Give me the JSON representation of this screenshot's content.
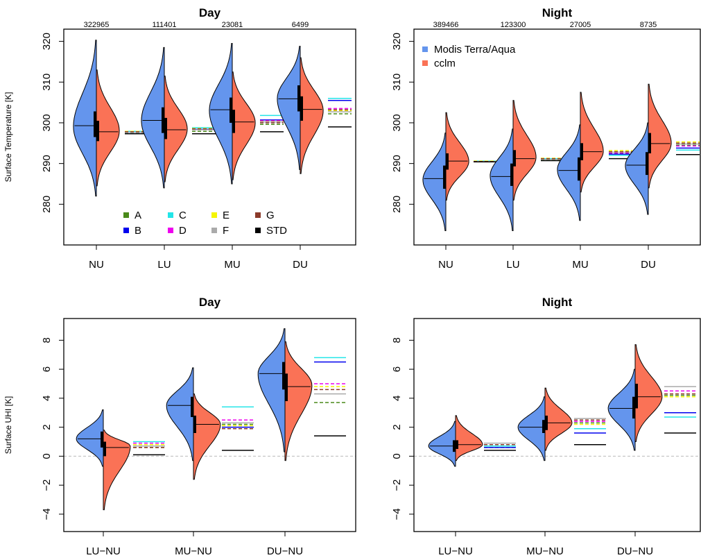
{
  "colors": {
    "modis": "#6495ed",
    "cclm": "#fa7256",
    "zero_line": "#bbbbbb"
  },
  "legend_series": [
    {
      "name": "Modis Terra/Aqua",
      "color": "#6495ed"
    },
    {
      "name": "cclm",
      "color": "#fa7256"
    }
  ],
  "legend_experiments": [
    {
      "name": "A",
      "color": "#4a8a1a"
    },
    {
      "name": "B",
      "color": "#0000ee"
    },
    {
      "name": "C",
      "color": "#22e5e8"
    },
    {
      "name": "D",
      "color": "#ee00ee"
    },
    {
      "name": "E",
      "color": "#f5f500"
    },
    {
      "name": "F",
      "color": "#aaaaaa"
    },
    {
      "name": "G",
      "color": "#8b3a2a"
    },
    {
      "name": "STD",
      "color": "#000000"
    }
  ],
  "chart_data": [
    {
      "type": "violin",
      "title": "Day",
      "ylabel": "Surface Temperature [K]",
      "ylim": [
        270,
        323
      ],
      "yticks": [
        280,
        290,
        300,
        310,
        320
      ],
      "categories": [
        "NU",
        "LU",
        "MU",
        "DU"
      ],
      "counts": [
        "322965",
        "111401",
        "23081",
        "6499"
      ],
      "modis": [
        {
          "min": 282.0,
          "max": 320.3,
          "mode": 299.0,
          "median": 299.3,
          "q1": 296.5,
          "q3": 302.8
        },
        {
          "min": 284.0,
          "max": 318.5,
          "mode": 300.5,
          "median": 300.6,
          "q1": 297.5,
          "q3": 303.8
        },
        {
          "min": 285.0,
          "max": 319.5,
          "mode": 303.0,
          "median": 303.2,
          "q1": 300.0,
          "q3": 306.2
        },
        {
          "min": 288.5,
          "max": 318.8,
          "mode": 306.0,
          "median": 305.9,
          "q1": 302.8,
          "q3": 309.2
        }
      ],
      "cclm": [
        {
          "min": 284.5,
          "max": 313.0,
          "mode": 298.0,
          "median": 297.8,
          "q1": 295.5,
          "q3": 300.5
        },
        {
          "min": 285.5,
          "max": 311.5,
          "mode": 298.5,
          "median": 298.3,
          "q1": 296.0,
          "q3": 301.2
        },
        {
          "min": 286.0,
          "max": 312.5,
          "mode": 300.0,
          "median": 300.2,
          "q1": 297.5,
          "q3": 303.2
        },
        {
          "min": 287.5,
          "max": 316.0,
          "mode": 303.0,
          "median": 303.3,
          "q1": 300.5,
          "q3": 306.5
        }
      ],
      "experiments": [
        {
          "A": 297.6,
          "B": 297.7,
          "C": 297.9,
          "D": 297.8,
          "E": 297.9,
          "F": 297.7,
          "G": 297.8,
          "STD": 297.3
        },
        {
          "A": 297.9,
          "B": 298.4,
          "C": 298.8,
          "D": 298.4,
          "E": 298.6,
          "F": 298.3,
          "G": 298.5,
          "STD": 297.3
        },
        {
          "A": 299.6,
          "B": 300.7,
          "C": 301.8,
          "D": 300.5,
          "E": 300.3,
          "F": 300.2,
          "G": 300.0,
          "STD": 297.8
        },
        {
          "A": 302.2,
          "B": 305.5,
          "C": 306.0,
          "D": 303.5,
          "E": 303.0,
          "F": 302.7,
          "G": 303.2,
          "STD": 299.0
        }
      ],
      "legend": "bottom-center"
    },
    {
      "type": "violin",
      "title": "Night",
      "ylabel": "",
      "ylim": [
        270,
        323
      ],
      "yticks": [
        280,
        290,
        300,
        310,
        320
      ],
      "categories": [
        "NU",
        "LU",
        "MU",
        "DU"
      ],
      "counts": [
        "389466",
        "123300",
        "27005",
        "8735"
      ],
      "modis": [
        {
          "min": 273.5,
          "max": 297.5,
          "mode": 286.0,
          "median": 286.3,
          "q1": 283.8,
          "q3": 289.5
        },
        {
          "min": 273.5,
          "max": 298.5,
          "mode": 287.0,
          "median": 286.8,
          "q1": 284.5,
          "q3": 290.0
        },
        {
          "min": 276.0,
          "max": 299.5,
          "mode": 288.5,
          "median": 288.3,
          "q1": 285.8,
          "q3": 291.5
        },
        {
          "min": 277.5,
          "max": 300.0,
          "mode": 289.5,
          "median": 289.6,
          "q1": 287.2,
          "q3": 292.8
        }
      ],
      "cclm": [
        {
          "min": 281.0,
          "max": 302.5,
          "mode": 290.5,
          "median": 290.6,
          "q1": 288.5,
          "q3": 292.5
        },
        {
          "min": 281.0,
          "max": 305.5,
          "mode": 291.5,
          "median": 291.2,
          "q1": 289.3,
          "q3": 293.3
        },
        {
          "min": 283.0,
          "max": 307.5,
          "mode": 293.0,
          "median": 292.9,
          "q1": 290.8,
          "q3": 295.0
        },
        {
          "min": 284.0,
          "max": 309.5,
          "mode": 295.0,
          "median": 294.9,
          "q1": 292.5,
          "q3": 297.5
        }
      ],
      "experiments": [
        {
          "A": 290.4,
          "B": 290.5,
          "C": 290.6,
          "D": 290.5,
          "E": 290.6,
          "F": 290.5,
          "G": 290.5,
          "STD": 290.4
        },
        {
          "A": 290.9,
          "B": 291.0,
          "C": 291.2,
          "D": 291.1,
          "E": 291.3,
          "F": 291.0,
          "G": 291.2,
          "STD": 290.7
        },
        {
          "A": 292.5,
          "B": 292.3,
          "C": 292.0,
          "D": 292.6,
          "E": 293.2,
          "F": 292.8,
          "G": 292.9,
          "STD": 291.2
        },
        {
          "A": 294.5,
          "B": 293.8,
          "C": 293.3,
          "D": 294.3,
          "E": 295.3,
          "F": 294.8,
          "G": 295.0,
          "STD": 292.2
        }
      ],
      "legend": "top-left"
    },
    {
      "type": "violin",
      "title": "Day",
      "ylabel": "Surface UHI [K]",
      "ylim": [
        -5.2,
        9.5
      ],
      "yticks": [
        -4,
        -2,
        0,
        2,
        4,
        6,
        8
      ],
      "zero_line": true,
      "categories": [
        "LU−NU",
        "MU−NU",
        "DU−NU"
      ],
      "modis": [
        {
          "min": -0.7,
          "max": 3.2,
          "mode": 1.2,
          "median": 1.2,
          "q1": 0.6,
          "q3": 1.7
        },
        {
          "min": -0.3,
          "max": 6.1,
          "mode": 3.5,
          "median": 3.5,
          "q1": 2.7,
          "q3": 4.1
        },
        {
          "min": 0.3,
          "max": 8.8,
          "mode": 5.7,
          "median": 5.7,
          "q1": 4.6,
          "q3": 6.5
        }
      ],
      "cclm": [
        {
          "min": -3.7,
          "max": 1.8,
          "mode": 0.7,
          "median": 0.6,
          "q1": 0.0,
          "q3": 1.0
        },
        {
          "min": -1.6,
          "max": 4.3,
          "mode": 2.2,
          "median": 2.2,
          "q1": 1.6,
          "q3": 2.8
        },
        {
          "min": -0.3,
          "max": 7.9,
          "mode": 4.9,
          "median": 4.8,
          "q1": 3.8,
          "q3": 5.7
        }
      ],
      "experiments": [
        {
          "A": 0.6,
          "B": 0.7,
          "C": 1.0,
          "D": 0.9,
          "E": 0.8,
          "F": 0.7,
          "G": 0.6,
          "STD": 0.1
        },
        {
          "A": 2.2,
          "B": 2.0,
          "C": 3.4,
          "D": 2.5,
          "E": 2.1,
          "F": 2.3,
          "G": 1.9,
          "STD": 0.4
        },
        {
          "A": 3.7,
          "B": 6.5,
          "C": 6.8,
          "D": 5.0,
          "E": 4.8,
          "F": 4.3,
          "G": 4.6,
          "STD": 1.4
        }
      ]
    },
    {
      "type": "violin",
      "title": "Night",
      "ylabel": "",
      "ylim": [
        -5.2,
        9.5
      ],
      "yticks": [
        -4,
        -2,
        0,
        2,
        4,
        6,
        8
      ],
      "zero_line": true,
      "categories": [
        "LU−NU",
        "MU−NU",
        "DU−NU"
      ],
      "modis": [
        {
          "min": -0.7,
          "max": 2.4,
          "mode": 0.7,
          "median": 0.7,
          "q1": 0.3,
          "q3": 1.1
        },
        {
          "min": -0.3,
          "max": 4.1,
          "mode": 2.0,
          "median": 2.0,
          "q1": 1.6,
          "q3": 2.5
        },
        {
          "min": 0.4,
          "max": 6.0,
          "mode": 3.3,
          "median": 3.3,
          "q1": 2.6,
          "q3": 4.1
        }
      ],
      "cclm": [
        {
          "min": -0.3,
          "max": 2.8,
          "mode": 0.8,
          "median": 0.8,
          "q1": 0.5,
          "q3": 1.1
        },
        {
          "min": 0.4,
          "max": 4.7,
          "mode": 2.3,
          "median": 2.3,
          "q1": 1.8,
          "q3": 2.8
        },
        {
          "min": 1.0,
          "max": 7.7,
          "mode": 4.1,
          "median": 4.1,
          "q1": 3.3,
          "q3": 5.0
        }
      ],
      "experiments": [
        {
          "A": 0.6,
          "B": 0.6,
          "C": 0.7,
          "D": 0.8,
          "E": 0.8,
          "F": 0.9,
          "G": 0.8,
          "STD": 0.4
        },
        {
          "A": 2.3,
          "B": 1.6,
          "C": 1.9,
          "D": 2.4,
          "E": 2.2,
          "F": 2.6,
          "G": 2.5,
          "STD": 0.8
        },
        {
          "A": 4.2,
          "B": 3.0,
          "C": 2.7,
          "D": 4.5,
          "E": 4.1,
          "F": 4.8,
          "G": 4.3,
          "STD": 1.6
        }
      ]
    }
  ]
}
